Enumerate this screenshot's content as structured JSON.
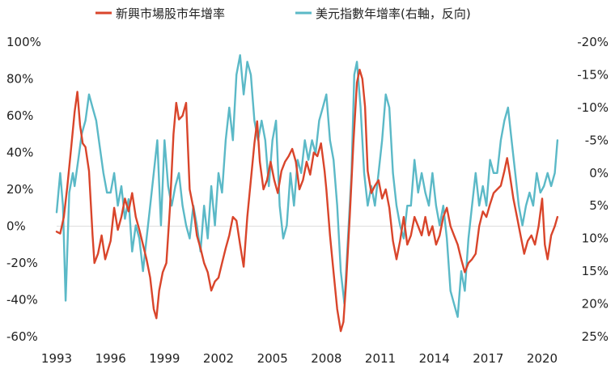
{
  "chart_data": {
    "type": "line",
    "title": "",
    "xlabel": "",
    "ylabel": "",
    "x_ticks": [
      "1993",
      "1996",
      "1999",
      "2002",
      "2005",
      "2008",
      "2011",
      "2014",
      "2017",
      "2020"
    ],
    "x_range": [
      1993,
      2020.9
    ],
    "y_left": {
      "range": [
        -60,
        100
      ],
      "ticks": [
        100,
        80,
        60,
        40,
        20,
        0,
        -20,
        -40,
        -60
      ],
      "tick_labels": [
        "100%",
        "80%",
        "60%",
        "40%",
        "20%",
        "0%",
        "-20%",
        "-40%",
        "-60%"
      ]
    },
    "y_right": {
      "range": [
        -20,
        25
      ],
      "inverted": true,
      "ticks": [
        -20,
        -15,
        -10,
        -5,
        0,
        5,
        10,
        15,
        20,
        25
      ],
      "tick_labels": [
        "-20%",
        "-15%",
        "-10%",
        "-5%",
        "0%",
        "5%",
        "10%",
        "15%",
        "20%",
        "25%"
      ]
    },
    "grid": false,
    "zero_line_left": true,
    "legend_position": "top",
    "series": [
      {
        "name": "新興市場股市年增率",
        "axis": "left",
        "color": "#d9452b",
        "points": [
          [
            1993.0,
            -3
          ],
          [
            1993.2,
            -4
          ],
          [
            1993.4,
            5
          ],
          [
            1993.6,
            22
          ],
          [
            1993.8,
            42
          ],
          [
            1994.0,
            62
          ],
          [
            1994.15,
            73
          ],
          [
            1994.3,
            55
          ],
          [
            1994.45,
            45
          ],
          [
            1994.6,
            43
          ],
          [
            1994.8,
            30
          ],
          [
            1995.0,
            -5
          ],
          [
            1995.1,
            -20
          ],
          [
            1995.3,
            -15
          ],
          [
            1995.5,
            -5
          ],
          [
            1995.7,
            -18
          ],
          [
            1996.0,
            -8
          ],
          [
            1996.2,
            10
          ],
          [
            1996.4,
            -2
          ],
          [
            1996.6,
            5
          ],
          [
            1996.8,
            15
          ],
          [
            1997.0,
            8
          ],
          [
            1997.2,
            18
          ],
          [
            1997.4,
            5
          ],
          [
            1997.6,
            -2
          ],
          [
            1997.8,
            -10
          ],
          [
            1998.0,
            -18
          ],
          [
            1998.2,
            -28
          ],
          [
            1998.4,
            -45
          ],
          [
            1998.55,
            -50
          ],
          [
            1998.7,
            -35
          ],
          [
            1998.9,
            -25
          ],
          [
            1999.1,
            -20
          ],
          [
            1999.3,
            10
          ],
          [
            1999.5,
            50
          ],
          [
            1999.65,
            67
          ],
          [
            1999.8,
            58
          ],
          [
            2000.0,
            60
          ],
          [
            2000.2,
            67
          ],
          [
            2000.4,
            20
          ],
          [
            2000.6,
            10
          ],
          [
            2000.8,
            -5
          ],
          [
            2001.0,
            -12
          ],
          [
            2001.2,
            -20
          ],
          [
            2001.4,
            -25
          ],
          [
            2001.6,
            -35
          ],
          [
            2001.8,
            -30
          ],
          [
            2002.0,
            -28
          ],
          [
            2002.2,
            -20
          ],
          [
            2002.4,
            -12
          ],
          [
            2002.6,
            -5
          ],
          [
            2002.8,
            5
          ],
          [
            2003.0,
            3
          ],
          [
            2003.2,
            -10
          ],
          [
            2003.4,
            -22
          ],
          [
            2003.6,
            5
          ],
          [
            2003.8,
            25
          ],
          [
            2004.0,
            45
          ],
          [
            2004.15,
            57
          ],
          [
            2004.3,
            35
          ],
          [
            2004.5,
            20
          ],
          [
            2004.7,
            25
          ],
          [
            2004.9,
            35
          ],
          [
            2005.1,
            25
          ],
          [
            2005.3,
            18
          ],
          [
            2005.5,
            30
          ],
          [
            2005.7,
            35
          ],
          [
            2005.9,
            38
          ],
          [
            2006.1,
            42
          ],
          [
            2006.3,
            35
          ],
          [
            2006.5,
            20
          ],
          [
            2006.7,
            25
          ],
          [
            2006.9,
            35
          ],
          [
            2007.1,
            28
          ],
          [
            2007.3,
            40
          ],
          [
            2007.5,
            38
          ],
          [
            2007.7,
            45
          ],
          [
            2007.9,
            30
          ],
          [
            2008.0,
            20
          ],
          [
            2008.2,
            -5
          ],
          [
            2008.4,
            -25
          ],
          [
            2008.6,
            -45
          ],
          [
            2008.8,
            -57
          ],
          [
            2008.95,
            -52
          ],
          [
            2009.1,
            -30
          ],
          [
            2009.3,
            5
          ],
          [
            2009.5,
            45
          ],
          [
            2009.7,
            78
          ],
          [
            2009.85,
            85
          ],
          [
            2010.0,
            80
          ],
          [
            2010.15,
            65
          ],
          [
            2010.3,
            30
          ],
          [
            2010.5,
            18
          ],
          [
            2010.7,
            22
          ],
          [
            2010.9,
            25
          ],
          [
            2011.1,
            15
          ],
          [
            2011.3,
            20
          ],
          [
            2011.5,
            10
          ],
          [
            2011.7,
            -8
          ],
          [
            2011.9,
            -18
          ],
          [
            2012.1,
            -8
          ],
          [
            2012.3,
            5
          ],
          [
            2012.5,
            -10
          ],
          [
            2012.7,
            -5
          ],
          [
            2012.9,
            5
          ],
          [
            2013.1,
            0
          ],
          [
            2013.3,
            -5
          ],
          [
            2013.5,
            5
          ],
          [
            2013.7,
            -5
          ],
          [
            2013.9,
            0
          ],
          [
            2014.1,
            -10
          ],
          [
            2014.3,
            -5
          ],
          [
            2014.5,
            5
          ],
          [
            2014.7,
            10
          ],
          [
            2014.9,
            0
          ],
          [
            2015.1,
            -5
          ],
          [
            2015.3,
            -10
          ],
          [
            2015.5,
            -18
          ],
          [
            2015.7,
            -25
          ],
          [
            2015.9,
            -20
          ],
          [
            2016.1,
            -18
          ],
          [
            2016.3,
            -15
          ],
          [
            2016.5,
            0
          ],
          [
            2016.7,
            8
          ],
          [
            2016.9,
            5
          ],
          [
            2017.1,
            12
          ],
          [
            2017.3,
            18
          ],
          [
            2017.5,
            20
          ],
          [
            2017.7,
            22
          ],
          [
            2017.9,
            30
          ],
          [
            2018.05,
            37
          ],
          [
            2018.2,
            28
          ],
          [
            2018.4,
            15
          ],
          [
            2018.6,
            5
          ],
          [
            2018.8,
            -5
          ],
          [
            2019.0,
            -15
          ],
          [
            2019.2,
            -8
          ],
          [
            2019.4,
            -5
          ],
          [
            2019.6,
            -10
          ],
          [
            2019.8,
            0
          ],
          [
            2020.0,
            15
          ],
          [
            2020.15,
            -10
          ],
          [
            2020.3,
            -18
          ],
          [
            2020.5,
            -5
          ],
          [
            2020.7,
            0
          ],
          [
            2020.85,
            5
          ]
        ]
      },
      {
        "name": "美元指數年增率(右軸，反向)",
        "axis": "right",
        "color": "#5bb9c7",
        "points": [
          [
            1993.0,
            6
          ],
          [
            1993.2,
            0
          ],
          [
            1993.35,
            5
          ],
          [
            1993.5,
            19.5
          ],
          [
            1993.7,
            3
          ],
          [
            1993.9,
            0
          ],
          [
            1994.0,
            2
          ],
          [
            1994.2,
            -2
          ],
          [
            1994.4,
            -6
          ],
          [
            1994.6,
            -8
          ],
          [
            1994.8,
            -12
          ],
          [
            1995.0,
            -10
          ],
          [
            1995.2,
            -8
          ],
          [
            1995.4,
            -4
          ],
          [
            1995.6,
            0
          ],
          [
            1995.8,
            3
          ],
          [
            1996.0,
            3
          ],
          [
            1996.2,
            0
          ],
          [
            1996.4,
            5
          ],
          [
            1996.6,
            2
          ],
          [
            1996.8,
            7
          ],
          [
            1997.0,
            4
          ],
          [
            1997.2,
            12
          ],
          [
            1997.4,
            8
          ],
          [
            1997.6,
            10
          ],
          [
            1997.8,
            15
          ],
          [
            1998.0,
            10
          ],
          [
            1998.2,
            5
          ],
          [
            1998.4,
            0
          ],
          [
            1998.6,
            -5
          ],
          [
            1998.8,
            8
          ],
          [
            1999.0,
            -5
          ],
          [
            1999.2,
            2
          ],
          [
            1999.4,
            5
          ],
          [
            1999.6,
            2
          ],
          [
            1999.8,
            0
          ],
          [
            2000.0,
            5
          ],
          [
            2000.2,
            8
          ],
          [
            2000.4,
            10
          ],
          [
            2000.6,
            5
          ],
          [
            2000.8,
            8
          ],
          [
            2001.0,
            12
          ],
          [
            2001.2,
            5
          ],
          [
            2001.4,
            10
          ],
          [
            2001.6,
            2
          ],
          [
            2001.8,
            8
          ],
          [
            2002.0,
            0
          ],
          [
            2002.2,
            3
          ],
          [
            2002.4,
            -5
          ],
          [
            2002.6,
            -10
          ],
          [
            2002.8,
            -5
          ],
          [
            2003.0,
            -15
          ],
          [
            2003.2,
            -18
          ],
          [
            2003.4,
            -12
          ],
          [
            2003.6,
            -17
          ],
          [
            2003.8,
            -15
          ],
          [
            2004.0,
            -8
          ],
          [
            2004.2,
            -5
          ],
          [
            2004.4,
            -8
          ],
          [
            2004.6,
            -5
          ],
          [
            2004.8,
            2
          ],
          [
            2005.0,
            -5
          ],
          [
            2005.2,
            -8
          ],
          [
            2005.4,
            5
          ],
          [
            2005.6,
            10
          ],
          [
            2005.8,
            8
          ],
          [
            2006.0,
            0
          ],
          [
            2006.2,
            5
          ],
          [
            2006.4,
            -2
          ],
          [
            2006.6,
            0
          ],
          [
            2006.8,
            -5
          ],
          [
            2007.0,
            -2
          ],
          [
            2007.2,
            -5
          ],
          [
            2007.4,
            -3
          ],
          [
            2007.6,
            -8
          ],
          [
            2007.8,
            -10
          ],
          [
            2008.0,
            -12
          ],
          [
            2008.2,
            -5
          ],
          [
            2008.4,
            -2
          ],
          [
            2008.6,
            5
          ],
          [
            2008.8,
            15
          ],
          [
            2009.0,
            20
          ],
          [
            2009.2,
            10
          ],
          [
            2009.4,
            0
          ],
          [
            2009.55,
            -15
          ],
          [
            2009.7,
            -17
          ],
          [
            2009.9,
            -10
          ],
          [
            2010.1,
            0
          ],
          [
            2010.3,
            5
          ],
          [
            2010.5,
            2
          ],
          [
            2010.7,
            5
          ],
          [
            2010.9,
            0
          ],
          [
            2011.1,
            -5
          ],
          [
            2011.3,
            -12
          ],
          [
            2011.5,
            -10
          ],
          [
            2011.7,
            0
          ],
          [
            2011.9,
            5
          ],
          [
            2012.1,
            8
          ],
          [
            2012.3,
            10
          ],
          [
            2012.5,
            5
          ],
          [
            2012.7,
            5
          ],
          [
            2012.9,
            -2
          ],
          [
            2013.1,
            3
          ],
          [
            2013.3,
            0
          ],
          [
            2013.5,
            3
          ],
          [
            2013.7,
            5
          ],
          [
            2013.9,
            0
          ],
          [
            2014.1,
            5
          ],
          [
            2014.3,
            8
          ],
          [
            2014.5,
            5
          ],
          [
            2014.7,
            10
          ],
          [
            2014.9,
            18
          ],
          [
            2015.1,
            20
          ],
          [
            2015.3,
            22
          ],
          [
            2015.5,
            15
          ],
          [
            2015.7,
            18
          ],
          [
            2015.9,
            10
          ],
          [
            2016.1,
            5
          ],
          [
            2016.3,
            0
          ],
          [
            2016.5,
            5
          ],
          [
            2016.7,
            2
          ],
          [
            2016.9,
            5
          ],
          [
            2017.1,
            -2
          ],
          [
            2017.3,
            0
          ],
          [
            2017.5,
            0
          ],
          [
            2017.7,
            -5
          ],
          [
            2017.9,
            -8
          ],
          [
            2018.1,
            -10
          ],
          [
            2018.3,
            -5
          ],
          [
            2018.5,
            0
          ],
          [
            2018.7,
            5
          ],
          [
            2018.9,
            8
          ],
          [
            2019.1,
            5
          ],
          [
            2019.3,
            3
          ],
          [
            2019.5,
            5
          ],
          [
            2019.7,
            0
          ],
          [
            2019.9,
            3
          ],
          [
            2020.1,
            2
          ],
          [
            2020.3,
            0
          ],
          [
            2020.5,
            2
          ],
          [
            2020.7,
            0
          ],
          [
            2020.85,
            -5
          ]
        ]
      }
    ]
  },
  "colors": {
    "zero_line": "#dddddd",
    "background": "#ffffff"
  }
}
